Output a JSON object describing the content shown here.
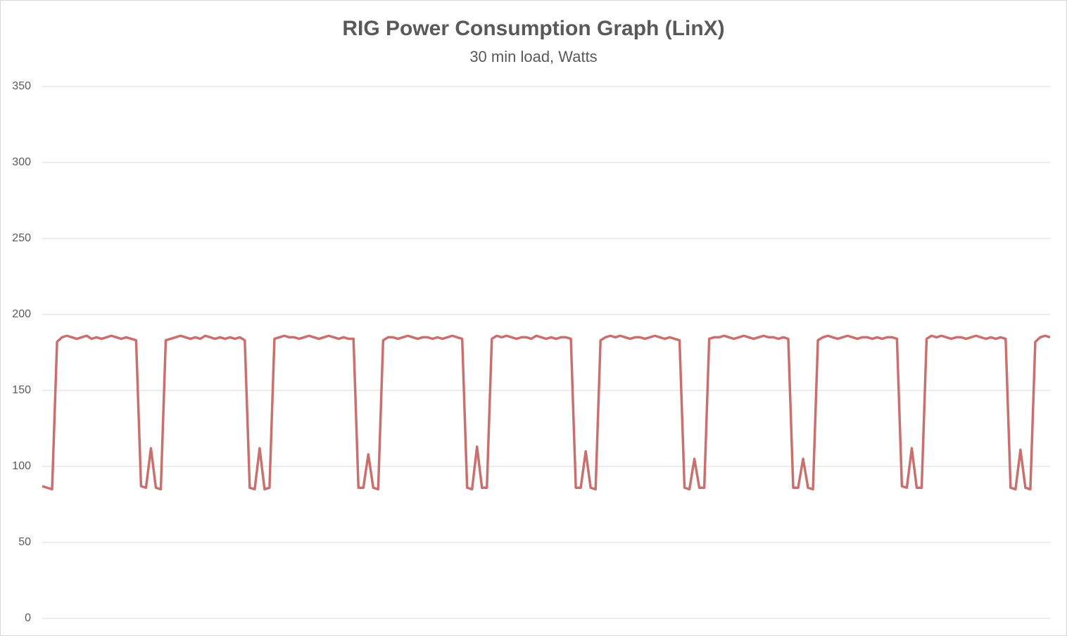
{
  "chart_data": {
    "type": "line",
    "title": "RIG Power Consumption Graph (LinX)",
    "subtitle": "30 min load, Watts",
    "color": "#c9706e",
    "grid": true,
    "ylim": [
      0,
      350
    ],
    "yticks": [
      0,
      50,
      100,
      150,
      200,
      250,
      300,
      350
    ],
    "values": [
      87,
      86,
      85,
      182,
      185,
      186,
      185,
      184,
      185,
      186,
      184,
      185,
      184,
      185,
      186,
      185,
      184,
      185,
      184,
      183,
      87,
      86,
      112,
      86,
      85,
      183,
      184,
      185,
      186,
      185,
      184,
      185,
      184,
      186,
      185,
      184,
      185,
      184,
      185,
      184,
      185,
      183,
      86,
      85,
      112,
      85,
      86,
      184,
      185,
      186,
      185,
      185,
      184,
      185,
      186,
      185,
      184,
      185,
      186,
      185,
      184,
      185,
      184,
      184,
      86,
      86,
      108,
      86,
      85,
      183,
      185,
      185,
      184,
      185,
      186,
      185,
      184,
      185,
      185,
      184,
      185,
      184,
      185,
      186,
      185,
      184,
      86,
      85,
      113,
      86,
      86,
      184,
      186,
      185,
      186,
      185,
      184,
      185,
      185,
      184,
      186,
      185,
      184,
      185,
      184,
      185,
      185,
      184,
      86,
      86,
      110,
      86,
      85,
      183,
      185,
      186,
      185,
      186,
      185,
      184,
      185,
      185,
      184,
      185,
      186,
      185,
      184,
      185,
      184,
      183,
      86,
      85,
      105,
      86,
      86,
      184,
      185,
      185,
      186,
      185,
      184,
      185,
      186,
      185,
      184,
      185,
      186,
      185,
      185,
      184,
      185,
      184,
      86,
      86,
      105,
      86,
      85,
      183,
      185,
      186,
      185,
      184,
      185,
      186,
      185,
      184,
      185,
      185,
      184,
      185,
      184,
      185,
      185,
      184,
      87,
      86,
      112,
      86,
      86,
      184,
      186,
      185,
      186,
      185,
      184,
      185,
      185,
      184,
      185,
      186,
      185,
      184,
      185,
      184,
      185,
      184,
      86,
      85,
      111,
      86,
      85,
      182,
      185,
      186,
      185
    ]
  }
}
